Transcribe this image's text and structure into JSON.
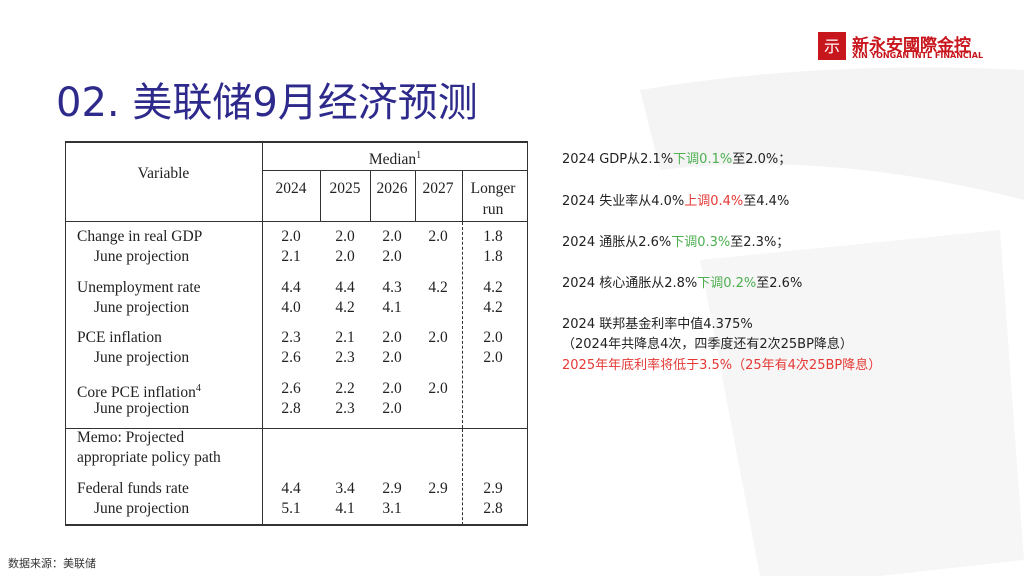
{
  "logo": {
    "name": "新永安國際金控",
    "subtitle": "XIN YONGAN INTL FINANCIAL"
  },
  "title": "02. 美联储9月经济预测",
  "table": {
    "header": {
      "variable": "Variable",
      "median": "Median",
      "median_note": "1",
      "columns": [
        "2024",
        "2025",
        "2026",
        "2027",
        "Longer run"
      ]
    },
    "groups": [
      {
        "label": "Change in real GDP",
        "values": [
          "2.0",
          "2.0",
          "2.0",
          "2.0",
          "1.8"
        ],
        "june": {
          "label": "June projection",
          "values": [
            "2.1",
            "2.0",
            "2.0",
            null,
            "1.8"
          ]
        }
      },
      {
        "label": "Unemployment rate",
        "values": [
          "4.4",
          "4.4",
          "4.3",
          "4.2",
          "4.2"
        ],
        "june": {
          "label": "June projection",
          "values": [
            "4.0",
            "4.2",
            "4.1",
            null,
            "4.2"
          ]
        }
      },
      {
        "label": "PCE inflation",
        "values": [
          "2.3",
          "2.1",
          "2.0",
          "2.0",
          "2.0"
        ],
        "june": {
          "label": "June projection",
          "values": [
            "2.6",
            "2.3",
            "2.0",
            null,
            "2.0"
          ]
        }
      },
      {
        "label": "Core PCE inflation",
        "note": "4",
        "values": [
          "2.6",
          "2.2",
          "2.0",
          "2.0",
          null
        ],
        "june": {
          "label": "June projection",
          "values": [
            "2.8",
            "2.3",
            "2.0",
            null,
            null
          ]
        }
      }
    ],
    "memo": [
      "Memo: Projected",
      "appropriate policy path"
    ],
    "funds": {
      "label": "Federal funds rate",
      "values": [
        "4.4",
        "3.4",
        "2.9",
        "2.9",
        "2.9"
      ],
      "june": {
        "label": "June projection",
        "values": [
          "5.1",
          "4.1",
          "3.1",
          null,
          "2.8"
        ]
      }
    }
  },
  "notes": [
    [
      {
        "text": "2024 GDP从2.1%"
      },
      {
        "text": "下调0.1%",
        "color": "#4caf50"
      },
      {
        "text": "至2.0%；"
      }
    ],
    [
      {
        "text": "2024 失业率从4.0%"
      },
      {
        "text": "上调0.4%",
        "color": "#e53935"
      },
      {
        "text": "至4.4%"
      }
    ],
    [
      {
        "text": "2024 通胀从2.6%"
      },
      {
        "text": "下调0.3%",
        "color": "#4caf50"
      },
      {
        "text": "至2.3%；"
      }
    ],
    [
      {
        "text": "2024 核心通胀从2.8%"
      },
      {
        "text": "下调0.2%",
        "color": "#4caf50"
      },
      {
        "text": "至2.6%"
      }
    ],
    [
      {
        "text": "2024 联邦基金利率中值4.375%"
      }
    ],
    [
      {
        "text": "（2024年共降息4次，四季度还有2次25BP降息）"
      }
    ],
    [
      {
        "text": "2025年年底利率将低于3.5%（25年有4次25BP降息）",
        "color": "#e53935"
      }
    ]
  ],
  "source": "数据来源：美联储"
}
